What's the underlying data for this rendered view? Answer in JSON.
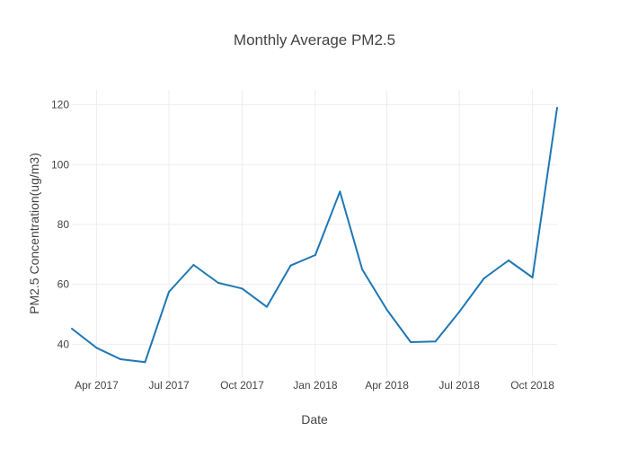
{
  "chart_data": {
    "type": "line",
    "title": "Monthly Average PM2.5",
    "xlabel": "Date",
    "ylabel": "PM2.5 Concentration(ug/m3)",
    "grid": true,
    "line_color": "#1f77b4",
    "x": [
      "2017-03-01",
      "2017-04-01",
      "2017-05-01",
      "2017-06-01",
      "2017-07-01",
      "2017-08-01",
      "2017-09-01",
      "2017-10-01",
      "2017-11-01",
      "2017-12-01",
      "2018-01-01",
      "2018-02-01",
      "2018-03-01",
      "2018-04-01",
      "2018-05-01",
      "2018-06-01",
      "2018-07-01",
      "2018-08-01",
      "2018-09-01",
      "2018-10-01",
      "2018-11-01"
    ],
    "y": [
      45.2,
      38.8,
      35.0,
      34.0,
      57.5,
      66.5,
      60.5,
      58.6,
      52.5,
      66.3,
      69.8,
      91.0,
      65.0,
      51.5,
      40.7,
      40.9,
      50.8,
      62.0,
      68.0,
      62.3,
      119.0
    ],
    "xlim": [
      "2017-03-01",
      "2018-11-01"
    ],
    "ylim": [
      29,
      125
    ],
    "xticks": [
      {
        "date": "2017-04-01",
        "label": "Apr 2017"
      },
      {
        "date": "2017-07-01",
        "label": "Jul 2017"
      },
      {
        "date": "2017-10-01",
        "label": "Oct 2017"
      },
      {
        "date": "2018-01-01",
        "label": "Jan 2018"
      },
      {
        "date": "2018-04-01",
        "label": "Apr 2018"
      },
      {
        "date": "2018-07-01",
        "label": "Jul 2018"
      },
      {
        "date": "2018-10-01",
        "label": "Oct 2018"
      }
    ],
    "yticks": [
      {
        "value": 40,
        "label": "40"
      },
      {
        "value": 60,
        "label": "60"
      },
      {
        "value": 80,
        "label": "80"
      },
      {
        "value": 100,
        "label": "100"
      },
      {
        "value": 120,
        "label": "120"
      }
    ]
  }
}
